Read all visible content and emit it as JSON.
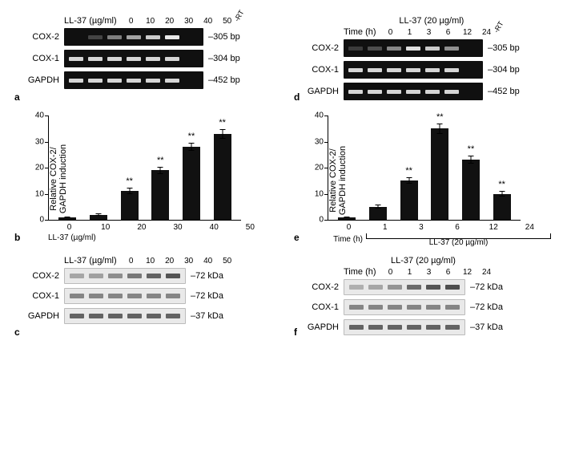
{
  "panel_a": {
    "label": "a",
    "treatment_label": "LL-37 (µg/ml)",
    "lanes": [
      "0",
      "10",
      "20",
      "30",
      "40",
      "50",
      "-RT"
    ],
    "rows": [
      {
        "name": "COX-2",
        "size": "–305 bp",
        "intensities": [
          0.0,
          0.1,
          0.4,
          0.6,
          0.8,
          0.95,
          0.0
        ]
      },
      {
        "name": "COX-1",
        "size": "–304 bp",
        "intensities": [
          0.85,
          0.85,
          0.85,
          0.85,
          0.85,
          0.85,
          0.0
        ]
      },
      {
        "name": "GAPDH",
        "size": "–452 bp",
        "intensities": [
          0.85,
          0.85,
          0.85,
          0.85,
          0.85,
          0.85,
          0.0
        ]
      }
    ],
    "gel_bg": "#101010",
    "band_color": "#f2f2f2"
  },
  "panel_d": {
    "label": "d",
    "title": "LL-37 (20 µg/ml)",
    "treatment_label": "Time (h)",
    "lanes": [
      "0",
      "1",
      "3",
      "6",
      "12",
      "24",
      "-RT"
    ],
    "rows": [
      {
        "name": "COX-2",
        "size": "–305 bp",
        "intensities": [
          0.05,
          0.15,
          0.45,
          0.9,
          0.8,
          0.5,
          0.0
        ]
      },
      {
        "name": "COX-1",
        "size": "–304 bp",
        "intensities": [
          0.85,
          0.85,
          0.85,
          0.85,
          0.85,
          0.85,
          0.0
        ]
      },
      {
        "name": "GAPDH",
        "size": "–452 bp",
        "intensities": [
          0.85,
          0.85,
          0.85,
          0.85,
          0.85,
          0.85,
          0.0
        ]
      }
    ],
    "gel_bg": "#101010",
    "band_color": "#f2f2f2"
  },
  "panel_b": {
    "label": "b",
    "ylabel": "Relative COX-2/\nGAPDH induction",
    "ylim": [
      0,
      40
    ],
    "ytick_step": 10,
    "xlabel": "LL-37 (µg/ml)",
    "categories": [
      "0",
      "10",
      "20",
      "30",
      "40",
      "50"
    ],
    "values": [
      1,
      2,
      11,
      19,
      28,
      33
    ],
    "errors": [
      0.3,
      0.6,
      1.2,
      1.4,
      1.6,
      1.8
    ],
    "sig": [
      "",
      "",
      "**",
      "**",
      "**",
      "**"
    ],
    "bar_color": "#111111"
  },
  "panel_e": {
    "label": "e",
    "ylabel": "Relative COX-2/\nGAPDH induction",
    "ylim": [
      0,
      40
    ],
    "ytick_step": 10,
    "xlabel": "Time (h)",
    "bracket_label": "LL-37 (20 µg/ml)",
    "categories": [
      "0",
      "1",
      "3",
      "6",
      "12",
      "24"
    ],
    "values": [
      1,
      5,
      15,
      35,
      23,
      10
    ],
    "errors": [
      0.3,
      0.8,
      1.3,
      2.0,
      1.5,
      1.0
    ],
    "sig": [
      "",
      "",
      "**",
      "**",
      "**",
      "**"
    ],
    "bar_color": "#111111"
  },
  "panel_c": {
    "label": "c",
    "treatment_label": "LL-37 (µg/ml)",
    "lanes": [
      "0",
      "10",
      "20",
      "30",
      "40",
      "50"
    ],
    "rows": [
      {
        "name": "COX-2",
        "size": "–72 kDa",
        "intensities": [
          0.3,
          0.35,
          0.5,
          0.65,
          0.8,
          0.9
        ]
      },
      {
        "name": "COX-1",
        "size": "–72 kDa",
        "intensities": [
          0.55,
          0.55,
          0.55,
          0.55,
          0.55,
          0.55
        ]
      },
      {
        "name": "GAPDH",
        "size": "–37 kDa",
        "intensities": [
          0.8,
          0.8,
          0.8,
          0.8,
          0.8,
          0.8
        ]
      }
    ],
    "blot_bg": "#e9e9e9",
    "band_color": "#474747"
  },
  "panel_f": {
    "label": "f",
    "title": "LL-37 (20 µg/ml)",
    "treatment_label": "Time (h)",
    "lanes": [
      "0",
      "1",
      "3",
      "6",
      "12",
      "24"
    ],
    "rows": [
      {
        "name": "COX-2",
        "size": "–72 kDa",
        "intensities": [
          0.25,
          0.3,
          0.45,
          0.75,
          0.9,
          0.95
        ]
      },
      {
        "name": "COX-1",
        "size": "–72 kDa",
        "intensities": [
          0.55,
          0.55,
          0.55,
          0.55,
          0.55,
          0.55
        ]
      },
      {
        "name": "GAPDH",
        "size": "–37 kDa",
        "intensities": [
          0.8,
          0.8,
          0.8,
          0.8,
          0.8,
          0.8
        ]
      }
    ],
    "blot_bg": "#e9e9e9",
    "band_color": "#474747"
  }
}
